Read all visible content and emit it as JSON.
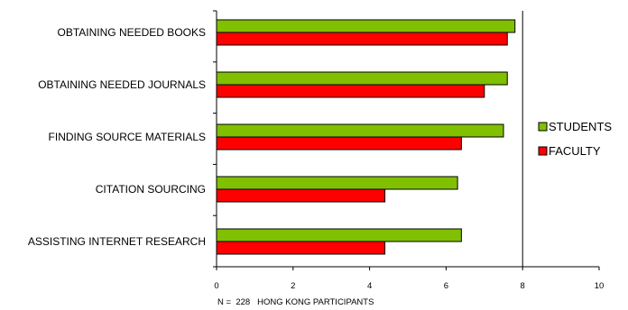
{
  "chart_data": {
    "type": "bar",
    "orientation": "horizontal",
    "categories": [
      "OBTAINING NEEDED BOOKS",
      "OBTAINING NEEDED JOURNALS",
      "FINDING SOURCE MATERIALS",
      "CITATION SOURCING",
      "ASSISTING INTERNET RESEARCH"
    ],
    "series": [
      {
        "name": "STUDENTS",
        "color": "#80C000",
        "values": [
          7.8,
          7.6,
          7.5,
          6.3,
          6.4
        ]
      },
      {
        "name": "FACULTY",
        "color": "#FF0000",
        "values": [
          7.6,
          7.0,
          6.4,
          4.4,
          4.4
        ]
      }
    ],
    "xlim": [
      0,
      10
    ],
    "xticks": [
      "0",
      "2",
      "4",
      "6",
      "8",
      "10"
    ],
    "reference_line_x": 8,
    "legend_position": "right",
    "xlabel": "N =  228   HONG KONG PARTICIPANTS"
  }
}
